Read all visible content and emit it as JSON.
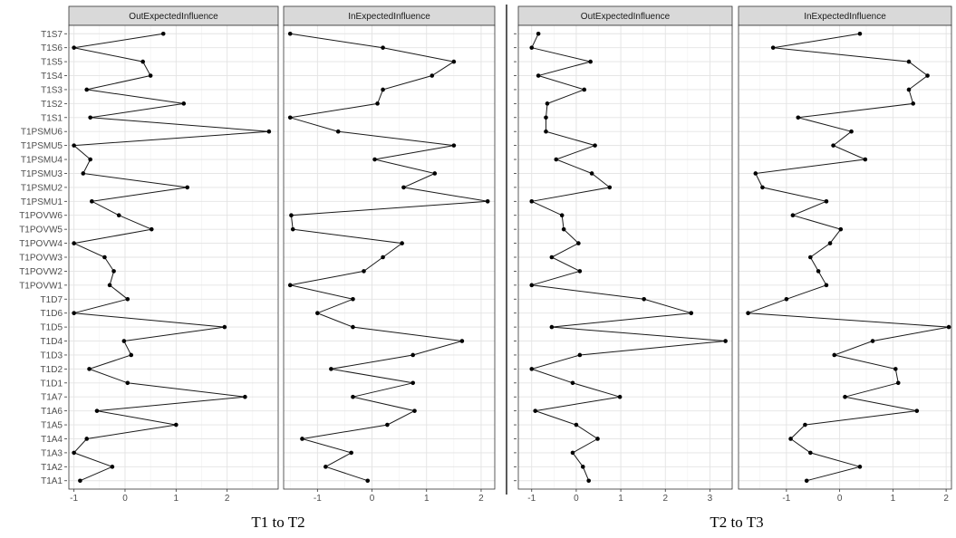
{
  "chart_data": {
    "type": "line",
    "categories": [
      "T1A1",
      "T1A2",
      "T1A3",
      "T1A4",
      "T1A5",
      "T1A6",
      "T1A7",
      "T1D1",
      "T1D2",
      "T1D3",
      "T1D4",
      "T1D5",
      "T1D6",
      "T1D7",
      "T1POVW1",
      "T1POVW2",
      "T1POVW3",
      "T1POVW4",
      "T1POVW5",
      "T1POVW6",
      "T1PSMU1",
      "T1PSMU2",
      "T1PSMU3",
      "T1PSMU4",
      "T1PSMU5",
      "T1PSMU6",
      "T1S1",
      "T1S2",
      "T1S3",
      "T1S4",
      "T1S5",
      "T1S6",
      "T1S7"
    ],
    "groups": [
      {
        "caption": "T1 to T2",
        "xlim": [
          -1.25,
          3.0
        ],
        "panels": [
          {
            "strip": "OutExpectedInfluence",
            "xlim": [
              -1.1,
              3.0
            ],
            "xticks": [
              -1,
              0,
              1,
              2
            ],
            "values": [
              -0.88,
              -0.25,
              -1.0,
              -0.75,
              1.0,
              -0.55,
              2.35,
              0.05,
              -0.7,
              0.12,
              -0.02,
              1.95,
              -1.0,
              0.05,
              -0.3,
              -0.22,
              -0.4,
              -1.0,
              0.52,
              -0.12,
              -0.65,
              1.22,
              -0.82,
              -0.68,
              -1.0,
              2.82,
              -0.68,
              1.15,
              -0.75,
              0.5,
              0.35,
              -1.0,
              0.75
            ]
          },
          {
            "strip": "InExpectedInfluence",
            "xlim": [
              -1.62,
              2.25
            ],
            "xticks": [
              -1,
              0,
              1,
              2
            ],
            "values": [
              -0.08,
              -0.85,
              -0.38,
              -1.28,
              0.28,
              0.78,
              -0.35,
              0.75,
              -0.75,
              0.75,
              1.65,
              -0.35,
              -1.0,
              -0.35,
              -1.5,
              -0.15,
              0.2,
              0.55,
              -1.45,
              -1.48,
              2.12,
              0.58,
              1.15,
              0.05,
              1.5,
              -0.62,
              -1.5,
              0.1,
              0.2,
              1.1,
              1.5,
              0.2,
              -1.5
            ]
          }
        ]
      },
      {
        "caption": "T2 to T3",
        "xlim": [
          -1.3,
          3.5
        ],
        "panels": [
          {
            "strip": "OutExpectedInfluence",
            "xlim": [
              -1.3,
              3.5
            ],
            "xticks": [
              -1,
              0,
              1,
              2,
              3
            ],
            "values": [
              0.28,
              0.15,
              -0.08,
              0.48,
              0.0,
              -0.92,
              0.98,
              -0.08,
              -1.0,
              0.08,
              3.35,
              -0.55,
              2.58,
              1.52,
              -1.0,
              0.08,
              -0.55,
              0.05,
              -0.28,
              -0.32,
              -1.0,
              0.75,
              0.35,
              -0.45,
              0.42,
              -0.68,
              -0.68,
              -0.65,
              0.18,
              -0.85,
              0.32,
              -1.0,
              -0.85
            ]
          },
          {
            "strip": "InExpectedInfluence",
            "xlim": [
              -1.9,
              2.1
            ],
            "xticks": [
              -1,
              0,
              1,
              2
            ],
            "values": [
              -0.62,
              0.38,
              -0.55,
              -0.92,
              -0.65,
              1.45,
              0.1,
              1.1,
              1.05,
              -0.1,
              0.62,
              2.05,
              -1.72,
              -1.0,
              -0.25,
              -0.4,
              -0.55,
              -0.18,
              0.02,
              -0.88,
              -0.25,
              -1.45,
              -1.58,
              0.48,
              -0.12,
              0.22,
              -0.78,
              1.38,
              1.3,
              1.65,
              1.3,
              -1.25,
              0.38
            ]
          }
        ]
      }
    ]
  }
}
